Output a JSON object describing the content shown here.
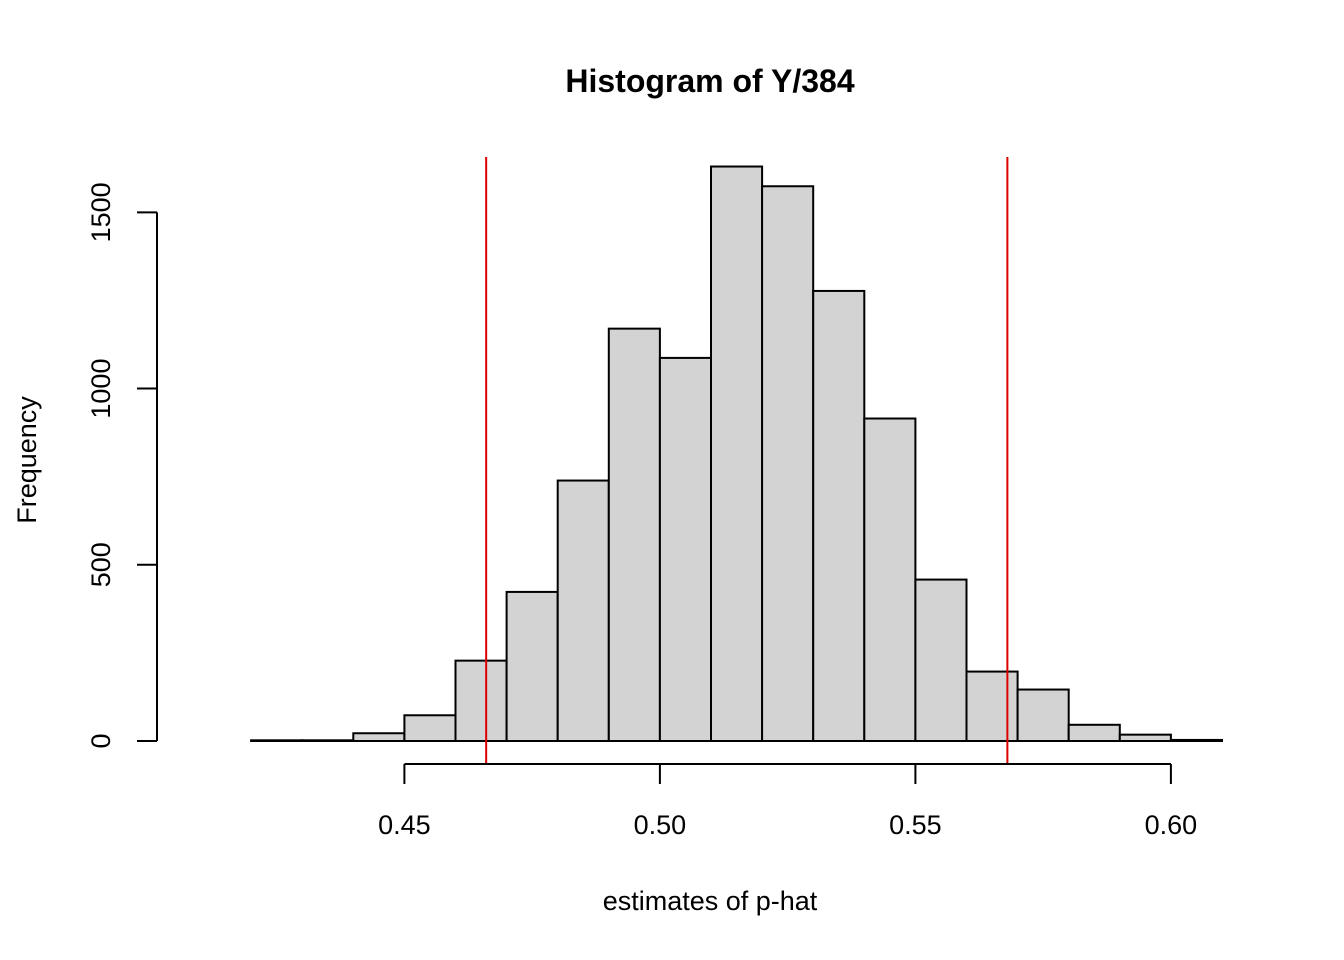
{
  "chart_data": {
    "type": "bar",
    "title": "Histogram of Y/384",
    "xlabel": "estimates of p-hat",
    "ylabel": "Frequency",
    "xlim": [
      0.41,
      0.61
    ],
    "ylim": [
      0,
      1640
    ],
    "x_ticks": [
      0.45,
      0.5,
      0.55,
      0.6
    ],
    "x_tick_labels": [
      "0.45",
      "0.50",
      "0.55",
      "0.60"
    ],
    "y_ticks": [
      0,
      500,
      1000,
      1500
    ],
    "y_tick_labels": [
      "0",
      "500",
      "1000",
      "1500"
    ],
    "bins": [
      {
        "start": 0.41,
        "end": 0.42,
        "count": 0
      },
      {
        "start": 0.42,
        "end": 0.43,
        "count": 2
      },
      {
        "start": 0.43,
        "end": 0.44,
        "count": 2
      },
      {
        "start": 0.44,
        "end": 0.45,
        "count": 22
      },
      {
        "start": 0.45,
        "end": 0.46,
        "count": 73
      },
      {
        "start": 0.46,
        "end": 0.47,
        "count": 228
      },
      {
        "start": 0.47,
        "end": 0.48,
        "count": 423
      },
      {
        "start": 0.48,
        "end": 0.49,
        "count": 739
      },
      {
        "start": 0.49,
        "end": 0.5,
        "count": 1170
      },
      {
        "start": 0.5,
        "end": 0.51,
        "count": 1087
      },
      {
        "start": 0.51,
        "end": 0.52,
        "count": 1630
      },
      {
        "start": 0.52,
        "end": 0.53,
        "count": 1574
      },
      {
        "start": 0.53,
        "end": 0.54,
        "count": 1277
      },
      {
        "start": 0.54,
        "end": 0.55,
        "count": 915
      },
      {
        "start": 0.55,
        "end": 0.56,
        "count": 458
      },
      {
        "start": 0.56,
        "end": 0.57,
        "count": 197
      },
      {
        "start": 0.57,
        "end": 0.58,
        "count": 146
      },
      {
        "start": 0.58,
        "end": 0.59,
        "count": 46
      },
      {
        "start": 0.59,
        "end": 0.6,
        "count": 18
      },
      {
        "start": 0.6,
        "end": 0.61,
        "count": 3
      }
    ],
    "reference_lines": [
      {
        "x": 0.466,
        "color": "#dd0000"
      },
      {
        "x": 0.568,
        "color": "#dd0000"
      }
    ],
    "bar_fill": "#d3d3d3",
    "bar_stroke": "#000000",
    "grid": false,
    "legend": "none"
  }
}
